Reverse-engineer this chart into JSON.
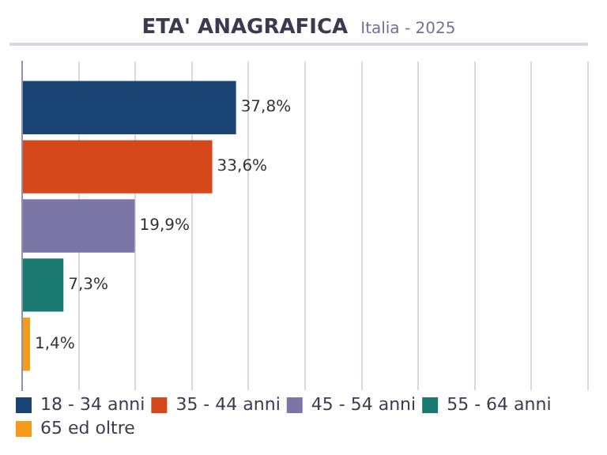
{
  "chart_data": {
    "type": "bar",
    "title": "ETA' ANAGRAFICA",
    "subtitle": "Italia - 2025",
    "orientation": "horizontal",
    "categories": [
      null
    ],
    "series": [
      {
        "name": "18 - 34 anni",
        "color": "#1a4474",
        "values": [
          37.8
        ],
        "value_labels": [
          "37,8%"
        ]
      },
      {
        "name": "35 - 44 anni",
        "color": "#d4481c",
        "values": [
          33.6
        ],
        "value_labels": [
          "33,6%"
        ]
      },
      {
        "name": "45 - 54 anni",
        "color": "#7a76a6",
        "values": [
          19.9
        ],
        "value_labels": [
          "19,9%"
        ]
      },
      {
        "name": "55 - 64 anni",
        "color": "#1a7a70",
        "values": [
          7.3
        ],
        "value_labels": [
          "7,3%"
        ]
      },
      {
        "name": "65 ed oltre",
        "color": "#f59a1a",
        "values": [
          1.4
        ],
        "value_labels": [
          "1,4%"
        ]
      }
    ],
    "xlim": [
      0,
      100
    ],
    "xticks": [
      {
        "value": 0,
        "label": null
      },
      {
        "value": 10,
        "label": null
      },
      {
        "value": 20,
        "label": null
      },
      {
        "value": 30,
        "label": null
      },
      {
        "value": 40,
        "label": null
      },
      {
        "value": 50,
        "label": null
      },
      {
        "value": 60,
        "label": null
      },
      {
        "value": 70,
        "label": null
      },
      {
        "value": 80,
        "label": null
      },
      {
        "value": 90,
        "label": null
      },
      {
        "value": 100,
        "label": null
      }
    ],
    "tick_labels": false,
    "grid": "x",
    "legend": "bottom"
  }
}
